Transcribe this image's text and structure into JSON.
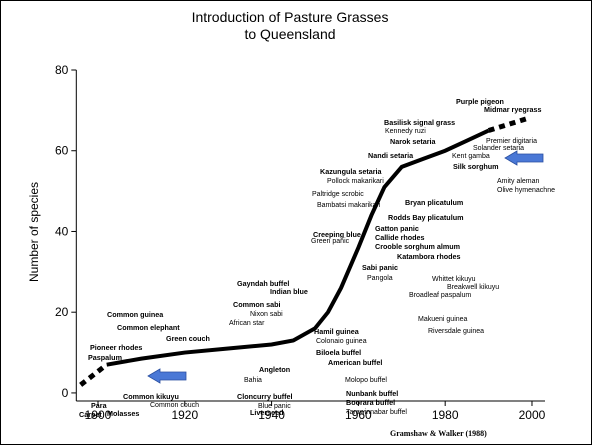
{
  "chart_data": {
    "type": "line",
    "title": [
      "Introduction of Pasture Grasses",
      "to Queensland"
    ],
    "y_label": "Number of species",
    "source": "Gramshaw & Walker (1988)",
    "xlim": [
      1895,
      2003
    ],
    "xticks": [
      1900,
      1920,
      1940,
      1960,
      1980,
      2000
    ],
    "ylim": [
      -2,
      80
    ],
    "yticks": [
      0,
      20,
      40,
      60,
      80
    ],
    "color": "#000000",
    "series": [
      {
        "dashed": true,
        "x": [
          1896,
          1902
        ],
        "values": [
          2,
          7
        ]
      },
      {
        "dashed": false,
        "x": [
          1902,
          1910,
          1920,
          1930,
          1940,
          1945,
          1950,
          1953,
          1956,
          1960,
          1963,
          1966,
          1970,
          1975,
          1980,
          1985,
          1990
        ],
        "values": [
          7,
          8.5,
          10,
          11,
          12,
          13,
          16,
          20,
          26,
          36,
          44,
          51,
          56,
          58,
          60,
          62.5,
          65
        ]
      },
      {
        "dashed": true,
        "x": [
          1990,
          1999
        ],
        "values": [
          65,
          68
        ]
      }
    ],
    "annotations": [
      {
        "text": "Purple pigeon",
        "bold": true
      },
      {
        "text": "Midmar ryegrass",
        "bold": true
      },
      {
        "text": "Basilisk signal grass",
        "bold": true
      },
      {
        "text": "Kennedy ruzi",
        "bold": false
      },
      {
        "text": "Narok setaria",
        "bold": true
      },
      {
        "text": "Premier digitaria",
        "bold": false
      },
      {
        "text": "Solander setaria",
        "bold": false
      },
      {
        "text": "Nandi setaria",
        "bold": true
      },
      {
        "text": "Kent gamba",
        "bold": false
      },
      {
        "text": "Silk sorghum",
        "bold": true
      },
      {
        "text": "Kazungula setaria",
        "bold": true
      },
      {
        "text": "Pollock makarikari",
        "bold": false
      },
      {
        "text": "Amity aleman",
        "bold": false
      },
      {
        "text": "Olive hymenachne",
        "bold": false
      },
      {
        "text": "Paltridge scrobic",
        "bold": false
      },
      {
        "text": "Bambatsi makarikari",
        "bold": false
      },
      {
        "text": "Bryan plicatulum",
        "bold": true
      },
      {
        "text": "Rodds Bay plicatulum",
        "bold": true
      },
      {
        "text": "Gatton panic",
        "bold": true
      },
      {
        "text": "Callide rhodes",
        "bold": true
      },
      {
        "text": "Crooble sorghum almum",
        "bold": true
      },
      {
        "text": "Green panic",
        "bold": false
      },
      {
        "text": "Creeping blue",
        "bold": true
      },
      {
        "text": "Katambora rhodes",
        "bold": true
      },
      {
        "text": "Sabi panic",
        "bold": true
      },
      {
        "text": "Pangola",
        "bold": false
      },
      {
        "text": "Whittet kikuyu",
        "bold": false
      },
      {
        "text": "Breakwell kikuyu",
        "bold": false
      },
      {
        "text": "Broadleaf paspalum",
        "bold": false
      },
      {
        "text": "Gayndah buffel",
        "bold": true
      },
      {
        "text": "Indian blue",
        "bold": true
      },
      {
        "text": "Common sabi",
        "bold": true
      },
      {
        "text": "Nixon sabi",
        "bold": false
      },
      {
        "text": "African star",
        "bold": false
      },
      {
        "text": "Common guinea",
        "bold": true
      },
      {
        "text": "Common elephant",
        "bold": true
      },
      {
        "text": "Makueni guinea",
        "bold": false
      },
      {
        "text": "Hamil guinea",
        "bold": true
      },
      {
        "text": "Riversdale guinea",
        "bold": false
      },
      {
        "text": "Green couch",
        "bold": true
      },
      {
        "text": "Colonaio guinea",
        "bold": false
      },
      {
        "text": "Pioneer rhodes",
        "bold": true
      },
      {
        "text": "Biloela buffel",
        "bold": true
      },
      {
        "text": "Paspalum",
        "bold": true
      },
      {
        "text": "American buffel",
        "bold": true
      },
      {
        "text": "Angleton",
        "bold": true
      },
      {
        "text": "Bahia",
        "bold": false
      },
      {
        "text": "Molopo buffel",
        "bold": false
      },
      {
        "text": "Nunbank buffel",
        "bold": true
      },
      {
        "text": "Common kikuyu",
        "bold": true
      },
      {
        "text": "Cloncurry buffel",
        "bold": true
      },
      {
        "text": "Boorara buffel",
        "bold": true
      },
      {
        "text": "Para",
        "bold": true
      },
      {
        "text": "Common couch",
        "bold": false
      },
      {
        "text": "Blue panic",
        "bold": false
      },
      {
        "text": "Tarawinnabar buffel",
        "bold": false
      },
      {
        "text": "Carpet",
        "bold": true
      },
      {
        "text": "Molasses",
        "bold": true
      },
      {
        "text": "Liverseed",
        "bold": true
      }
    ]
  }
}
